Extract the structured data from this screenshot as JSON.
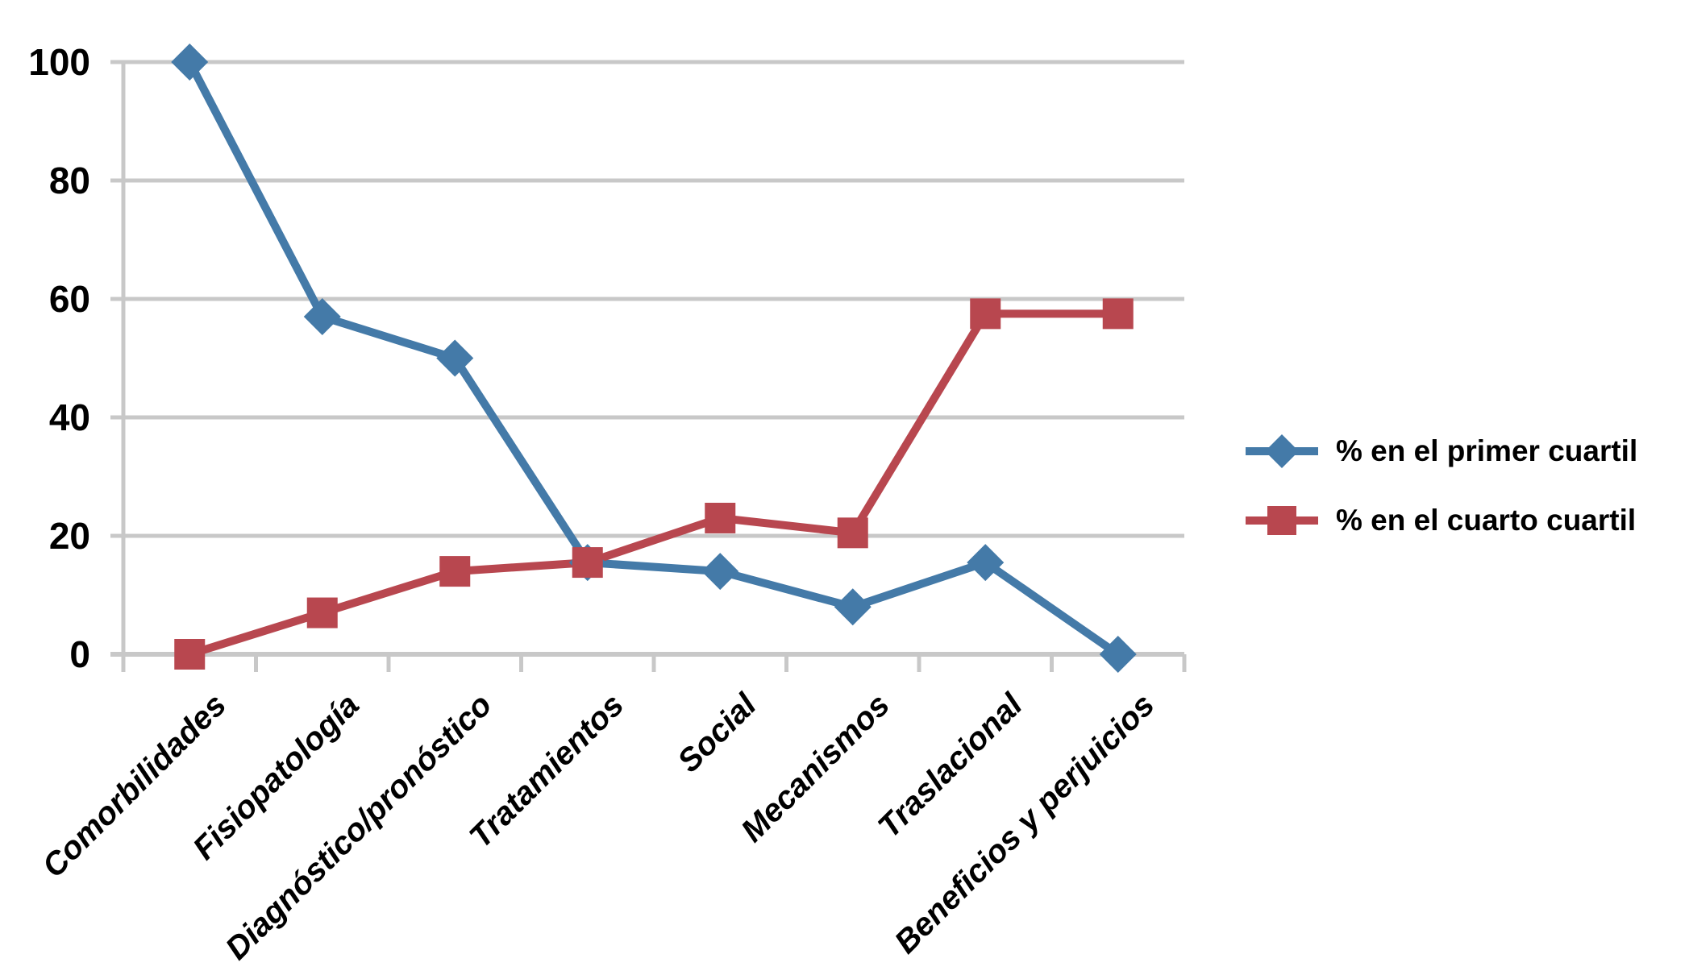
{
  "chart_data": {
    "type": "line",
    "categories": [
      "Comorbilidades",
      "Fisiopatología",
      "Diagnóstico/pronóstico",
      "Tratamientos",
      "Social",
      "Mecanismos",
      "Traslacional",
      "Beneficios y perjuicios"
    ],
    "series": [
      {
        "name": "% en el primer cuartil",
        "marker": "diamond",
        "color": "#447AA8",
        "values": [
          100,
          57,
          50,
          15.5,
          14,
          8,
          15.5,
          0
        ]
      },
      {
        "name": "% en el cuarto cuartil",
        "marker": "square",
        "color": "#B8474F",
        "values": [
          0,
          7,
          14,
          15.5,
          23,
          20.5,
          57.5,
          57.5
        ]
      }
    ],
    "title": "",
    "xlabel": "",
    "ylabel": "",
    "ylim": [
      0,
      100
    ],
    "yticks": [
      0,
      20,
      40,
      60,
      80,
      100
    ],
    "grid": true,
    "legend_position": "right",
    "colors": {
      "gridline": "#C8C8C8",
      "axis": "#C8C8C8",
      "text": "#000000",
      "background": "#FFFFFF"
    }
  }
}
